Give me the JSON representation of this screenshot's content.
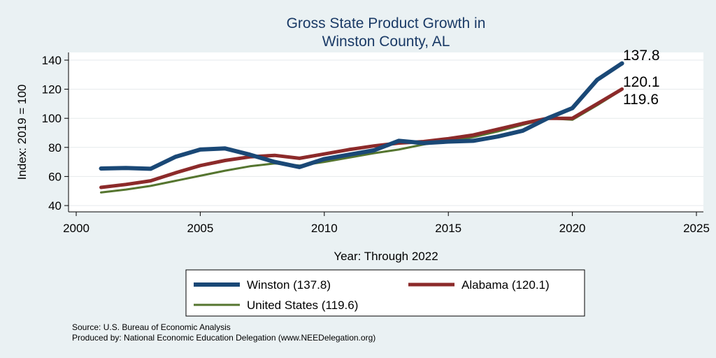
{
  "chart_data": {
    "type": "line",
    "title": [
      "Gross State Product Growth in",
      "Winston County, AL"
    ],
    "xlabel": "Year: Through 2022",
    "ylabel": "Index: 2019 = 100",
    "xlim": [
      2000,
      2025
    ],
    "ylim": [
      40,
      140
    ],
    "xticks": [
      "2000",
      "2005",
      "2010",
      "2015",
      "2020",
      "2025"
    ],
    "yticks": [
      "40",
      "60",
      "80",
      "100",
      "120",
      "140"
    ],
    "grid": true,
    "legend_position": "bottom",
    "x": [
      2001,
      2002,
      2003,
      2004,
      2005,
      2006,
      2007,
      2008,
      2009,
      2010,
      2011,
      2012,
      2013,
      2014,
      2015,
      2016,
      2017,
      2018,
      2019,
      2020,
      2021,
      2022
    ],
    "series": [
      {
        "name": "Winston",
        "legend_label": "Winston  (137.8)",
        "end_label": "137.8",
        "color": "#1a4876",
        "values": [
          65.5,
          65.8,
          65.3,
          73.5,
          78.5,
          79.3,
          75.0,
          70.0,
          66.5,
          72.0,
          75.0,
          78.0,
          84.5,
          83.0,
          84.0,
          84.5,
          87.5,
          91.5,
          100.0,
          107.0,
          126.5,
          137.8
        ]
      },
      {
        "name": "Alabama",
        "legend_label": "Alabama (120.1)",
        "end_label": "120.1",
        "color": "#8c2a2a",
        "values": [
          52.5,
          54.5,
          57.0,
          62.5,
          67.5,
          71.0,
          73.5,
          74.5,
          72.5,
          75.5,
          78.5,
          81.0,
          83.0,
          84.0,
          86.0,
          88.5,
          92.5,
          96.5,
          100.0,
          100.0,
          110.0,
          120.1
        ]
      },
      {
        "name": "United States",
        "legend_label": "United States (119.6)",
        "end_label": "119.6",
        "color": "#55752f",
        "values": [
          49.0,
          51.0,
          53.5,
          57.0,
          60.5,
          64.0,
          67.0,
          69.0,
          67.5,
          70.0,
          73.0,
          76.0,
          78.5,
          82.0,
          84.5,
          87.0,
          91.0,
          95.5,
          100.0,
          99.0,
          109.0,
          119.6
        ]
      }
    ]
  },
  "source_lines": [
    "Source: U.S. Bureau of Economic Analysis",
    "Produced by: National Economic Education Delegation (www.NEEDelegation.org)"
  ]
}
